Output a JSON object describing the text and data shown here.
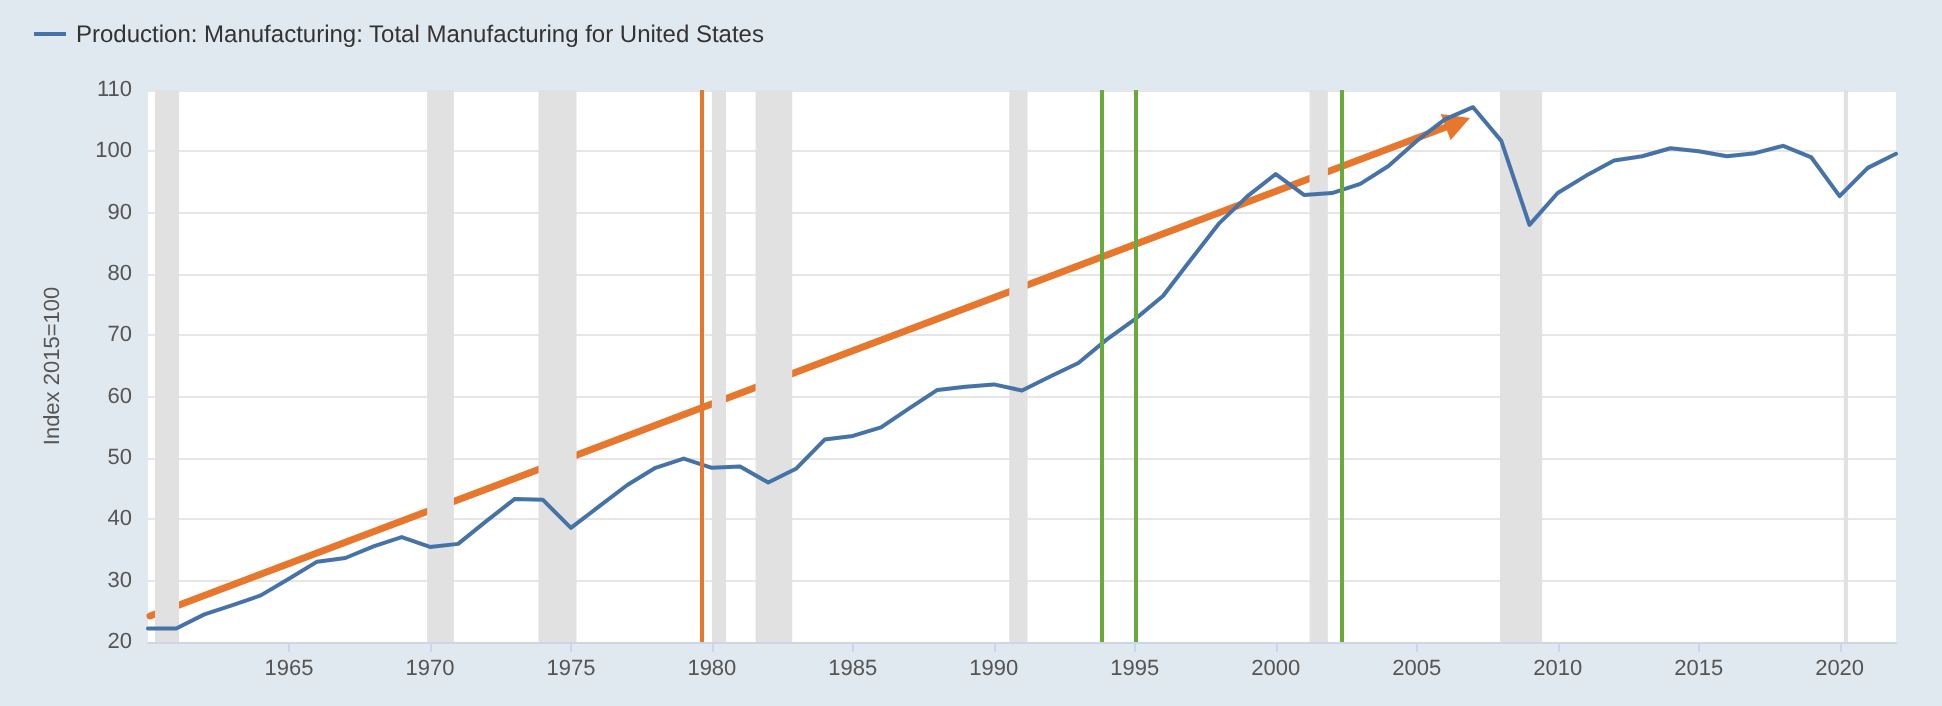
{
  "chart_data": {
    "type": "line",
    "ylabel": "Index 2015=100",
    "x": [
      1960,
      1961,
      1962,
      1963,
      1964,
      1965,
      1966,
      1967,
      1968,
      1969,
      1970,
      1971,
      1972,
      1973,
      1974,
      1975,
      1976,
      1977,
      1978,
      1979,
      1980,
      1981,
      1982,
      1983,
      1984,
      1985,
      1986,
      1987,
      1988,
      1989,
      1990,
      1991,
      1992,
      1993,
      1994,
      1995,
      1996,
      1997,
      1998,
      1999,
      2000,
      2001,
      2002,
      2003,
      2004,
      2005,
      2006,
      2007,
      2008,
      2009,
      2010,
      2011,
      2012,
      2013,
      2014,
      2015,
      2016,
      2017,
      2018,
      2019,
      2020,
      2021,
      2022
    ],
    "series": [
      {
        "name": "Production: Manufacturing: Total Manufacturing for United States",
        "color": "#4572a7",
        "values": [
          22.2,
          22.2,
          24.5,
          26.0,
          27.6,
          30.3,
          33.1,
          33.7,
          35.6,
          37.1,
          35.5,
          36.0,
          39.7,
          43.3,
          43.2,
          38.6,
          42.1,
          45.6,
          48.4,
          49.9,
          48.4,
          48.6,
          46.0,
          48.3,
          53.0,
          53.6,
          55.0,
          58.1,
          61.1,
          61.6,
          62.0,
          61.0,
          63.3,
          65.5,
          69.3,
          72.6,
          76.4,
          82.4,
          88.3,
          92.7,
          96.3,
          92.9,
          93.2,
          94.7,
          97.6,
          101.7,
          105.2,
          107.2,
          101.7,
          88.0,
          93.2,
          96.0,
          98.5,
          99.2,
          100.5,
          100.0,
          99.2,
          99.7,
          100.9,
          99.0,
          92.7,
          97.3,
          99.6
        ]
      }
    ],
    "xlim": [
      1960,
      2022
    ],
    "xticks": [
      1965,
      1970,
      1975,
      1980,
      1985,
      1990,
      1995,
      2000,
      2005,
      2010,
      2015,
      2020
    ],
    "ylim": [
      20,
      110
    ],
    "yticks": [
      20,
      30,
      40,
      50,
      60,
      70,
      80,
      90,
      100,
      110
    ],
    "bands": [
      {
        "axis": "x",
        "from": 1960.25,
        "to": 1961.1,
        "color": "#e1e1e1"
      },
      {
        "axis": "x",
        "from": 1969.9,
        "to": 1970.85,
        "color": "#e1e1e1"
      },
      {
        "axis": "x",
        "from": 1973.85,
        "to": 1975.2,
        "color": "#e1e1e1"
      },
      {
        "axis": "x",
        "from": 1980.0,
        "to": 1980.5,
        "color": "#e1e1e1"
      },
      {
        "axis": "x",
        "from": 1981.55,
        "to": 1982.85,
        "color": "#e1e1e1"
      },
      {
        "axis": "x",
        "from": 1990.55,
        "to": 1991.2,
        "color": "#e1e1e1"
      },
      {
        "axis": "x",
        "from": 2001.2,
        "to": 2001.85,
        "color": "#e1e1e1"
      },
      {
        "axis": "x",
        "from": 2007.95,
        "to": 2009.45,
        "color": "#e1e1e1"
      },
      {
        "axis": "x",
        "from": 2020.15,
        "to": 2020.3,
        "color": "#e1e1e1"
      }
    ],
    "ref_lines": [
      {
        "axis": "x",
        "value": 1979.6,
        "color": "#e8772e"
      },
      {
        "axis": "x",
        "value": 1993.8,
        "color": "#6aaa3a"
      },
      {
        "axis": "x",
        "value": 1995.0,
        "color": "#6aaa3a"
      },
      {
        "axis": "x",
        "value": 2002.3,
        "color": "#6aaa3a"
      }
    ],
    "grid": "y",
    "legend": "top left"
  }
}
